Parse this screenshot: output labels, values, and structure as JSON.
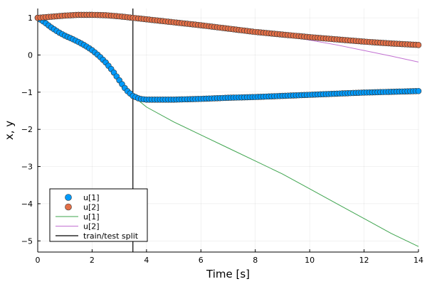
{
  "chart_data": {
    "type": "line",
    "xlabel": "Time [s]",
    "ylabel": "x, y",
    "xlim": [
      0,
      14
    ],
    "ylim": [
      -5.3,
      1.25
    ],
    "xticks": [
      0,
      2,
      4,
      6,
      8,
      10,
      12,
      14
    ],
    "yticks": [
      -5,
      -4,
      -3,
      -2,
      -1,
      0,
      1
    ],
    "grid": true,
    "legend_position": "bottom-left",
    "split_x": 3.5,
    "series": [
      {
        "name": "u[1]",
        "kind": "scatter",
        "color": "#009AFA",
        "points": [
          [
            0,
            1.0
          ],
          [
            0.25,
            0.88
          ],
          [
            0.5,
            0.74
          ],
          [
            0.75,
            0.62
          ],
          [
            1.0,
            0.52
          ],
          [
            1.25,
            0.44
          ],
          [
            1.5,
            0.35
          ],
          [
            1.75,
            0.25
          ],
          [
            2.0,
            0.13
          ],
          [
            2.25,
            -0.02
          ],
          [
            2.5,
            -0.2
          ],
          [
            2.75,
            -0.42
          ],
          [
            3.0,
            -0.68
          ],
          [
            3.25,
            -0.94
          ],
          [
            3.5,
            -1.1
          ],
          [
            3.75,
            -1.18
          ],
          [
            4.0,
            -1.2
          ],
          [
            4.5,
            -1.2
          ],
          [
            5.0,
            -1.2
          ],
          [
            6.0,
            -1.18
          ],
          [
            7.0,
            -1.15
          ],
          [
            8.0,
            -1.13
          ],
          [
            9.0,
            -1.1
          ],
          [
            10.0,
            -1.07
          ],
          [
            11.0,
            -1.04
          ],
          [
            12.0,
            -1.01
          ],
          [
            13.0,
            -0.99
          ],
          [
            14.0,
            -0.97
          ]
        ]
      },
      {
        "name": "u[2]",
        "kind": "scatter",
        "color": "#E36F47",
        "points": [
          [
            0,
            1.0
          ],
          [
            0.5,
            1.03
          ],
          [
            1.0,
            1.06
          ],
          [
            1.5,
            1.08
          ],
          [
            2.0,
            1.08
          ],
          [
            2.5,
            1.07
          ],
          [
            3.0,
            1.04
          ],
          [
            3.5,
            1.0
          ],
          [
            4.0,
            0.96
          ],
          [
            5.0,
            0.88
          ],
          [
            6.0,
            0.8
          ],
          [
            7.0,
            0.71
          ],
          [
            8.0,
            0.62
          ],
          [
            9.0,
            0.55
          ],
          [
            10.0,
            0.48
          ],
          [
            11.0,
            0.42
          ],
          [
            12.0,
            0.36
          ],
          [
            13.0,
            0.31
          ],
          [
            14.0,
            0.27
          ]
        ]
      },
      {
        "name": "u[1]",
        "kind": "line",
        "color": "#3EA44E",
        "points": [
          [
            0,
            1.0
          ],
          [
            0.25,
            0.88
          ],
          [
            0.5,
            0.74
          ],
          [
            0.75,
            0.62
          ],
          [
            1.0,
            0.52
          ],
          [
            1.25,
            0.44
          ],
          [
            1.5,
            0.35
          ],
          [
            1.75,
            0.25
          ],
          [
            2.0,
            0.13
          ],
          [
            2.25,
            -0.02
          ],
          [
            2.5,
            -0.2
          ],
          [
            2.75,
            -0.42
          ],
          [
            3.0,
            -0.68
          ],
          [
            3.25,
            -0.94
          ],
          [
            3.5,
            -1.1
          ],
          [
            4.0,
            -1.4
          ],
          [
            5.0,
            -1.8
          ],
          [
            6.0,
            -2.15
          ],
          [
            7.0,
            -2.5
          ],
          [
            8.0,
            -2.85
          ],
          [
            9.0,
            -3.2
          ],
          [
            10.0,
            -3.6
          ],
          [
            11.0,
            -4.0
          ],
          [
            12.0,
            -4.4
          ],
          [
            13.0,
            -4.8
          ],
          [
            14.0,
            -5.15
          ]
        ]
      },
      {
        "name": "u[2]",
        "kind": "line",
        "color": "#C271D2",
        "points": [
          [
            0,
            1.0
          ],
          [
            0.5,
            1.03
          ],
          [
            1.0,
            1.06
          ],
          [
            1.5,
            1.08
          ],
          [
            2.0,
            1.08
          ],
          [
            2.5,
            1.07
          ],
          [
            3.0,
            1.04
          ],
          [
            3.5,
            1.0
          ],
          [
            4.0,
            0.96
          ],
          [
            5.0,
            0.88
          ],
          [
            6.0,
            0.8
          ],
          [
            7.0,
            0.71
          ],
          [
            8.0,
            0.62
          ],
          [
            9.0,
            0.52
          ],
          [
            10.0,
            0.4
          ],
          [
            11.0,
            0.27
          ],
          [
            12.0,
            0.12
          ],
          [
            13.0,
            -0.03
          ],
          [
            14.0,
            -0.19
          ]
        ]
      },
      {
        "name": "train/test split",
        "kind": "vline",
        "color": "#000000",
        "points": [
          [
            3.5,
            -5.3
          ],
          [
            3.5,
            1.25
          ]
        ]
      }
    ]
  }
}
